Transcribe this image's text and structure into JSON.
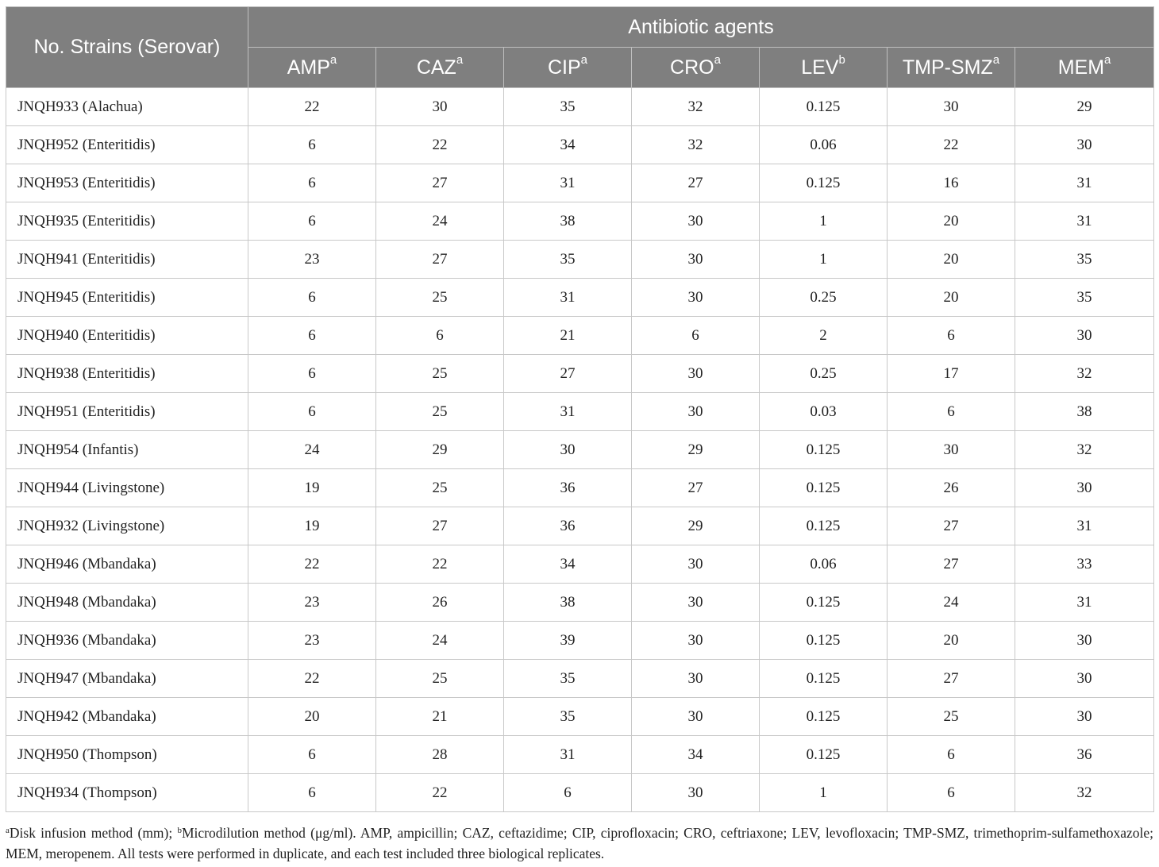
{
  "header": {
    "strain_col": "No. Strains (Serovar)",
    "group": "Antibiotic agents",
    "antibiotics": [
      {
        "name": "AMP",
        "sup": "a"
      },
      {
        "name": "CAZ",
        "sup": "a"
      },
      {
        "name": "CIP",
        "sup": "a"
      },
      {
        "name": "CRO",
        "sup": "a"
      },
      {
        "name": "LEV",
        "sup": "b"
      },
      {
        "name": "TMP-SMZ",
        "sup": "a"
      },
      {
        "name": "MEM",
        "sup": "a"
      }
    ]
  },
  "rows": [
    {
      "strain": "JNQH933 (Alachua)",
      "values": [
        "22",
        "30",
        "35",
        "32",
        "0.125",
        "30",
        "29"
      ]
    },
    {
      "strain": "JNQH952 (Enteritidis)",
      "values": [
        "6",
        "22",
        "34",
        "32",
        "0.06",
        "22",
        "30"
      ]
    },
    {
      "strain": "JNQH953 (Enteritidis)",
      "values": [
        "6",
        "27",
        "31",
        "27",
        "0.125",
        "16",
        "31"
      ]
    },
    {
      "strain": "JNQH935 (Enteritidis)",
      "values": [
        "6",
        "24",
        "38",
        "30",
        "1",
        "20",
        "31"
      ]
    },
    {
      "strain": "JNQH941 (Enteritidis)",
      "values": [
        "23",
        "27",
        "35",
        "30",
        "1",
        "20",
        "35"
      ]
    },
    {
      "strain": "JNQH945 (Enteritidis)",
      "values": [
        "6",
        "25",
        "31",
        "30",
        "0.25",
        "20",
        "35"
      ]
    },
    {
      "strain": "JNQH940 (Enteritidis)",
      "values": [
        "6",
        "6",
        "21",
        "6",
        "2",
        "6",
        "30"
      ]
    },
    {
      "strain": "JNQH938 (Enteritidis)",
      "values": [
        "6",
        "25",
        "27",
        "30",
        "0.25",
        "17",
        "32"
      ]
    },
    {
      "strain": "JNQH951 (Enteritidis)",
      "values": [
        "6",
        "25",
        "31",
        "30",
        "0.03",
        "6",
        "38"
      ]
    },
    {
      "strain": "JNQH954 (Infantis)",
      "values": [
        "24",
        "29",
        "30",
        "29",
        "0.125",
        "30",
        "32"
      ]
    },
    {
      "strain": "JNQH944 (Livingstone)",
      "values": [
        "19",
        "25",
        "36",
        "27",
        "0.125",
        "26",
        "30"
      ]
    },
    {
      "strain": "JNQH932 (Livingstone)",
      "values": [
        "19",
        "27",
        "36",
        "29",
        "0.125",
        "27",
        "31"
      ]
    },
    {
      "strain": "JNQH946 (Mbandaka)",
      "values": [
        "22",
        "22",
        "34",
        "30",
        "0.06",
        "27",
        "33"
      ]
    },
    {
      "strain": "JNQH948 (Mbandaka)",
      "values": [
        "23",
        "26",
        "38",
        "30",
        "0.125",
        "24",
        "31"
      ]
    },
    {
      "strain": "JNQH936 (Mbandaka)",
      "values": [
        "23",
        "24",
        "39",
        "30",
        "0.125",
        "20",
        "30"
      ]
    },
    {
      "strain": "JNQH947 (Mbandaka)",
      "values": [
        "22",
        "25",
        "35",
        "30",
        "0.125",
        "27",
        "30"
      ]
    },
    {
      "strain": "JNQH942 (Mbandaka)",
      "values": [
        "20",
        "21",
        "35",
        "30",
        "0.125",
        "25",
        "30"
      ]
    },
    {
      "strain": "JNQH950 (Thompson)",
      "values": [
        "6",
        "28",
        "31",
        "34",
        "0.125",
        "6",
        "36"
      ]
    },
    {
      "strain": "JNQH934 (Thompson)",
      "values": [
        "6",
        "22",
        "6",
        "30",
        "1",
        "6",
        "32"
      ]
    }
  ],
  "footnote": {
    "sup_a": "a",
    "text_a": "Disk infusion method (mm); ",
    "sup_b": "b",
    "text_b": "Microdilution method (μg/ml). AMP, ampicillin; CAZ, ceftazidime; CIP, ciprofloxacin; CRO, ceftriaxone; LEV, levofloxacin; TMP-SMZ, trimethoprim-sulfamethoxazole; MEM, meropenem. All tests were performed in duplicate, and each test included three biological replicates."
  }
}
